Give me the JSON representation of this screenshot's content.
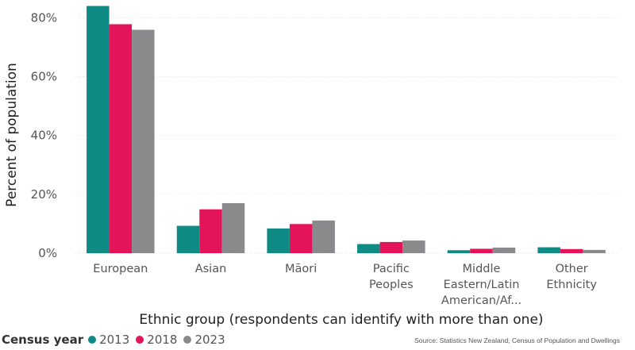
{
  "chart_data": {
    "type": "bar",
    "xlabel": "Ethnic group (respondents can identify with more than one)",
    "ylabel": "Percent of population",
    "ylim": [
      0,
      84
    ],
    "yticks": [
      0,
      20,
      40,
      60,
      80
    ],
    "ytick_labels": [
      "0%",
      "20%",
      "40%",
      "60%",
      "80%"
    ],
    "grid": true,
    "categories": [
      [
        "European"
      ],
      [
        "Asian"
      ],
      [
        "Māori"
      ],
      [
        "Pacific",
        "Peoples"
      ],
      [
        "Middle",
        "Eastern/Latin",
        "American/Af..."
      ],
      [
        "Other",
        "Ethnicity"
      ]
    ],
    "series": [
      {
        "name": "2013",
        "color": "#0f8a85",
        "values": [
          84.0,
          9.3,
          8.4,
          3.1,
          1.0,
          2.0
        ]
      },
      {
        "name": "2018",
        "color": "#e3145a",
        "values": [
          77.8,
          14.9,
          9.9,
          3.8,
          1.5,
          1.4
        ]
      },
      {
        "name": "2023",
        "color": "#8a8a8c",
        "values": [
          75.9,
          17.0,
          11.1,
          4.3,
          1.9,
          1.1
        ]
      }
    ],
    "legend": {
      "title": "Census year",
      "position": "bottom-left"
    }
  },
  "source": "Source: Statistics New Zealand, Census of Population and Dwellings"
}
